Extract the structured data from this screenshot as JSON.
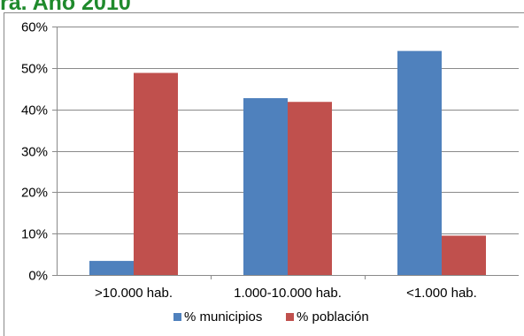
{
  "header": {
    "partial_title": "ra. Año 2010"
  },
  "chart_data": {
    "type": "bar",
    "title": "",
    "xlabel": "",
    "ylabel": "",
    "categories": [
      ">10.000 hab.",
      "1.000-10.000 hab.",
      "<1.000 hab."
    ],
    "series": [
      {
        "name": "% municipios",
        "values": [
          3.4,
          42.7,
          54.1
        ],
        "color": "#4f81bd"
      },
      {
        "name": "% población",
        "values": [
          48.8,
          41.8,
          9.5
        ],
        "color": "#c0504d"
      }
    ],
    "ylim": [
      0,
      60
    ],
    "yticks": [
      0,
      10,
      20,
      30,
      40,
      50,
      60
    ],
    "ytick_labels": [
      "0%",
      "10%",
      "20%",
      "30%",
      "40%",
      "50%",
      "60%"
    ],
    "grid": true,
    "legend_position": "bottom"
  }
}
